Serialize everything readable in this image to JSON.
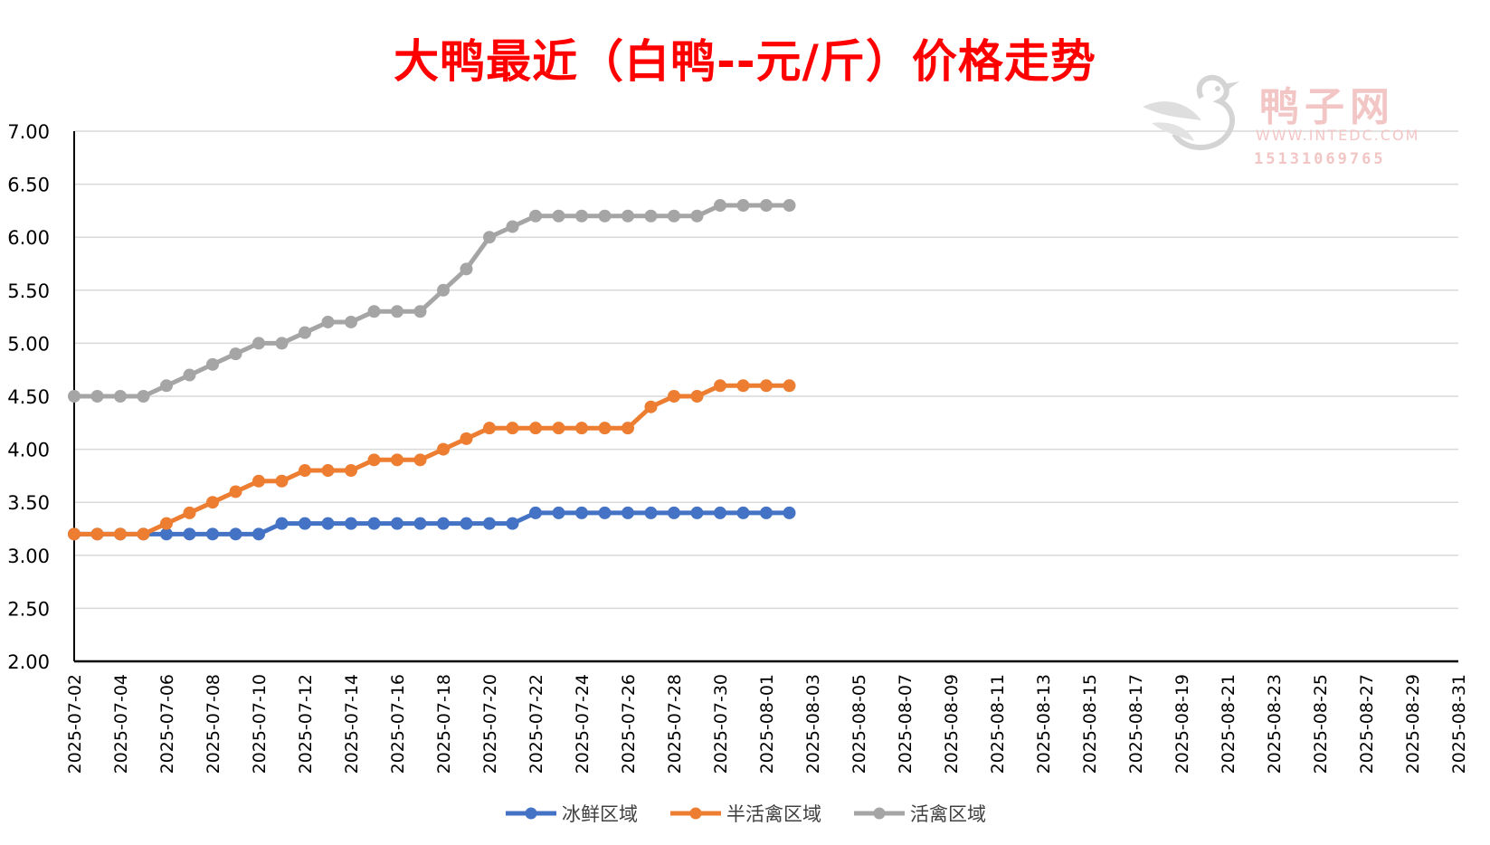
{
  "colors": {
    "title": "#ff0000",
    "series": [
      "#4472c4",
      "#ed7d31",
      "#a5a5a5"
    ],
    "grid": "#d9d9d9",
    "axis": "#000000",
    "watermark": "#f3c6c6"
  },
  "watermark": {
    "icon": "duck-logo-icon",
    "name": "鸭子网",
    "url": "WWW.INTEDC.COM",
    "phone": "15131069765"
  },
  "chart_data": {
    "type": "line",
    "title": "大鸭最近（白鸭--元/斤）价格走势",
    "xlabel": "",
    "ylabel": "",
    "ylim": [
      2.0,
      7.0
    ],
    "yticks": [
      "2.00",
      "2.50",
      "3.00",
      "3.50",
      "4.00",
      "4.50",
      "5.00",
      "5.50",
      "6.00",
      "6.50",
      "7.00"
    ],
    "x_range": [
      "2025-07-02",
      "2025-08-31"
    ],
    "xticks": [
      "2025-07-02",
      "2025-07-04",
      "2025-07-06",
      "2025-07-08",
      "2025-07-10",
      "2025-07-12",
      "2025-07-14",
      "2025-07-16",
      "2025-07-18",
      "2025-07-20",
      "2025-07-22",
      "2025-07-24",
      "2025-07-26",
      "2025-07-28",
      "2025-07-30",
      "2025-08-01",
      "2025-08-03",
      "2025-08-05",
      "2025-08-07",
      "2025-08-09",
      "2025-08-11",
      "2025-08-13",
      "2025-08-15",
      "2025-08-17",
      "2025-08-19",
      "2025-08-21",
      "2025-08-23",
      "2025-08-25",
      "2025-08-27",
      "2025-08-29",
      "2025-08-31"
    ],
    "grid": "horizontal",
    "legend": "bottom",
    "x": [
      "2025-07-02",
      "2025-07-03",
      "2025-07-04",
      "2025-07-05",
      "2025-07-06",
      "2025-07-07",
      "2025-07-08",
      "2025-07-09",
      "2025-07-10",
      "2025-07-11",
      "2025-07-12",
      "2025-07-13",
      "2025-07-14",
      "2025-07-15",
      "2025-07-16",
      "2025-07-17",
      "2025-07-18",
      "2025-07-19",
      "2025-07-20",
      "2025-07-21",
      "2025-07-22",
      "2025-07-23",
      "2025-07-24",
      "2025-07-25",
      "2025-07-26",
      "2025-07-27",
      "2025-07-28",
      "2025-07-29",
      "2025-07-30",
      "2025-07-31",
      "2025-08-01",
      "2025-08-02"
    ],
    "series": [
      {
        "name": "冰鲜区域",
        "values": [
          3.2,
          3.2,
          3.2,
          3.2,
          3.2,
          3.2,
          3.2,
          3.2,
          3.2,
          3.3,
          3.3,
          3.3,
          3.3,
          3.3,
          3.3,
          3.3,
          3.3,
          3.3,
          3.3,
          3.3,
          3.4,
          3.4,
          3.4,
          3.4,
          3.4,
          3.4,
          3.4,
          3.4,
          3.4,
          3.4,
          3.4,
          3.4
        ]
      },
      {
        "name": "半活禽区域",
        "values": [
          3.2,
          3.2,
          3.2,
          3.2,
          3.3,
          3.4,
          3.5,
          3.6,
          3.7,
          3.7,
          3.8,
          3.8,
          3.8,
          3.9,
          3.9,
          3.9,
          4.0,
          4.1,
          4.2,
          4.2,
          4.2,
          4.2,
          4.2,
          4.2,
          4.2,
          4.4,
          4.5,
          4.5,
          4.6,
          4.6,
          4.6,
          4.6
        ]
      },
      {
        "name": "活禽区域",
        "values": [
          4.5,
          4.5,
          4.5,
          4.5,
          4.6,
          4.7,
          4.8,
          4.9,
          5.0,
          5.0,
          5.1,
          5.2,
          5.2,
          5.3,
          5.3,
          5.3,
          5.5,
          5.7,
          6.0,
          6.1,
          6.2,
          6.2,
          6.2,
          6.2,
          6.2,
          6.2,
          6.2,
          6.2,
          6.3,
          6.3,
          6.3,
          6.3
        ]
      }
    ]
  }
}
